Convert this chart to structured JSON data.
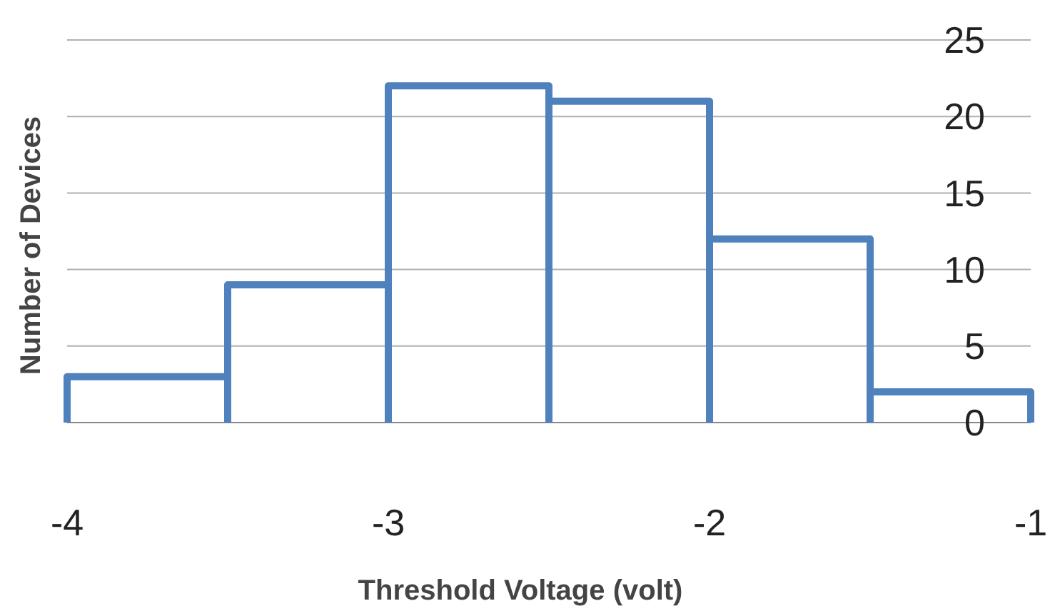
{
  "chart_data": {
    "type": "histogram",
    "xlabel": "Threshold Voltage (volt)",
    "ylabel": "Number of Devices",
    "bins": [
      -4,
      -3.5,
      -3,
      -2.5,
      -2,
      -1.5,
      -1
    ],
    "values": [
      3,
      9,
      22,
      21,
      12,
      2
    ],
    "color": "#4f81bd",
    "xlim": [
      -4,
      -1
    ],
    "xticks": [
      -4,
      -3,
      -2,
      -1
    ],
    "ylim": [
      0,
      25
    ],
    "yticks": [
      0,
      5,
      10,
      15,
      20,
      25
    ],
    "grid": "y"
  }
}
